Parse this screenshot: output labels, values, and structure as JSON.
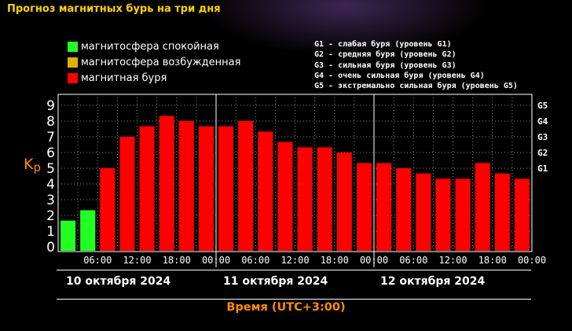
{
  "title": "Прогноз магнитных бурь на три дня",
  "legend": [
    {
      "label": "магнитосфера спокойная",
      "color": "#22ff22"
    },
    {
      "label": "магнитосфера возбужденная",
      "color": "#e0b000"
    },
    {
      "label": "магнитная буря",
      "color": "#ff0000"
    }
  ],
  "g_legend": [
    "G1 - слабая буря (уровень G1)",
    "G2 - средняя буря (уровень G2)",
    "G3 - сильная буря (уровень G3)",
    "G4 - очень сильная буря (уровень G4)",
    "G5 - экстремально сильная буря (уровень G5)"
  ],
  "ylabel_main": "K",
  "ylabel_sub": "p",
  "xaxis_title": "Время (UTC+3:00)",
  "dates": [
    "10 октября 2024",
    "11 октября 2024",
    "12 октября 2024"
  ],
  "chart_data": {
    "type": "bar",
    "ylim": [
      0,
      9
    ],
    "yticks": [
      0,
      1,
      2,
      3,
      4,
      5,
      6,
      7,
      8,
      9
    ],
    "xtick_labels": [
      "06:00",
      "12:00",
      "18:00",
      "00:00",
      "06:00",
      "12:00",
      "18:00",
      "00:00",
      "06:00",
      "12:00",
      "18:00",
      "00:00"
    ],
    "right_axis_labels": [
      {
        "label": "G1",
        "value": 5
      },
      {
        "label": "G2",
        "value": 6
      },
      {
        "label": "G3",
        "value": 7
      },
      {
        "label": "G4",
        "value": 8
      },
      {
        "label": "G5",
        "value": 9
      }
    ],
    "values": [
      1.67,
      2.33,
      5.0,
      7.0,
      7.67,
      8.33,
      8.0,
      7.67,
      7.67,
      8.0,
      7.33,
      6.67,
      6.33,
      6.33,
      6.0,
      5.33,
      5.33,
      5.0,
      4.67,
      4.33,
      4.33,
      5.33,
      4.67,
      4.33
    ],
    "colors": [
      "#22ff22",
      "#22ff22",
      "#ff0000",
      "#ff0000",
      "#ff0000",
      "#ff0000",
      "#ff0000",
      "#ff0000",
      "#ff0000",
      "#ff0000",
      "#ff0000",
      "#ff0000",
      "#ff0000",
      "#ff0000",
      "#ff0000",
      "#ff0000",
      "#ff0000",
      "#ff0000",
      "#ff0000",
      "#ff0000",
      "#ff0000",
      "#ff0000",
      "#ff0000",
      "#ff0000"
    ],
    "grid": true
  }
}
